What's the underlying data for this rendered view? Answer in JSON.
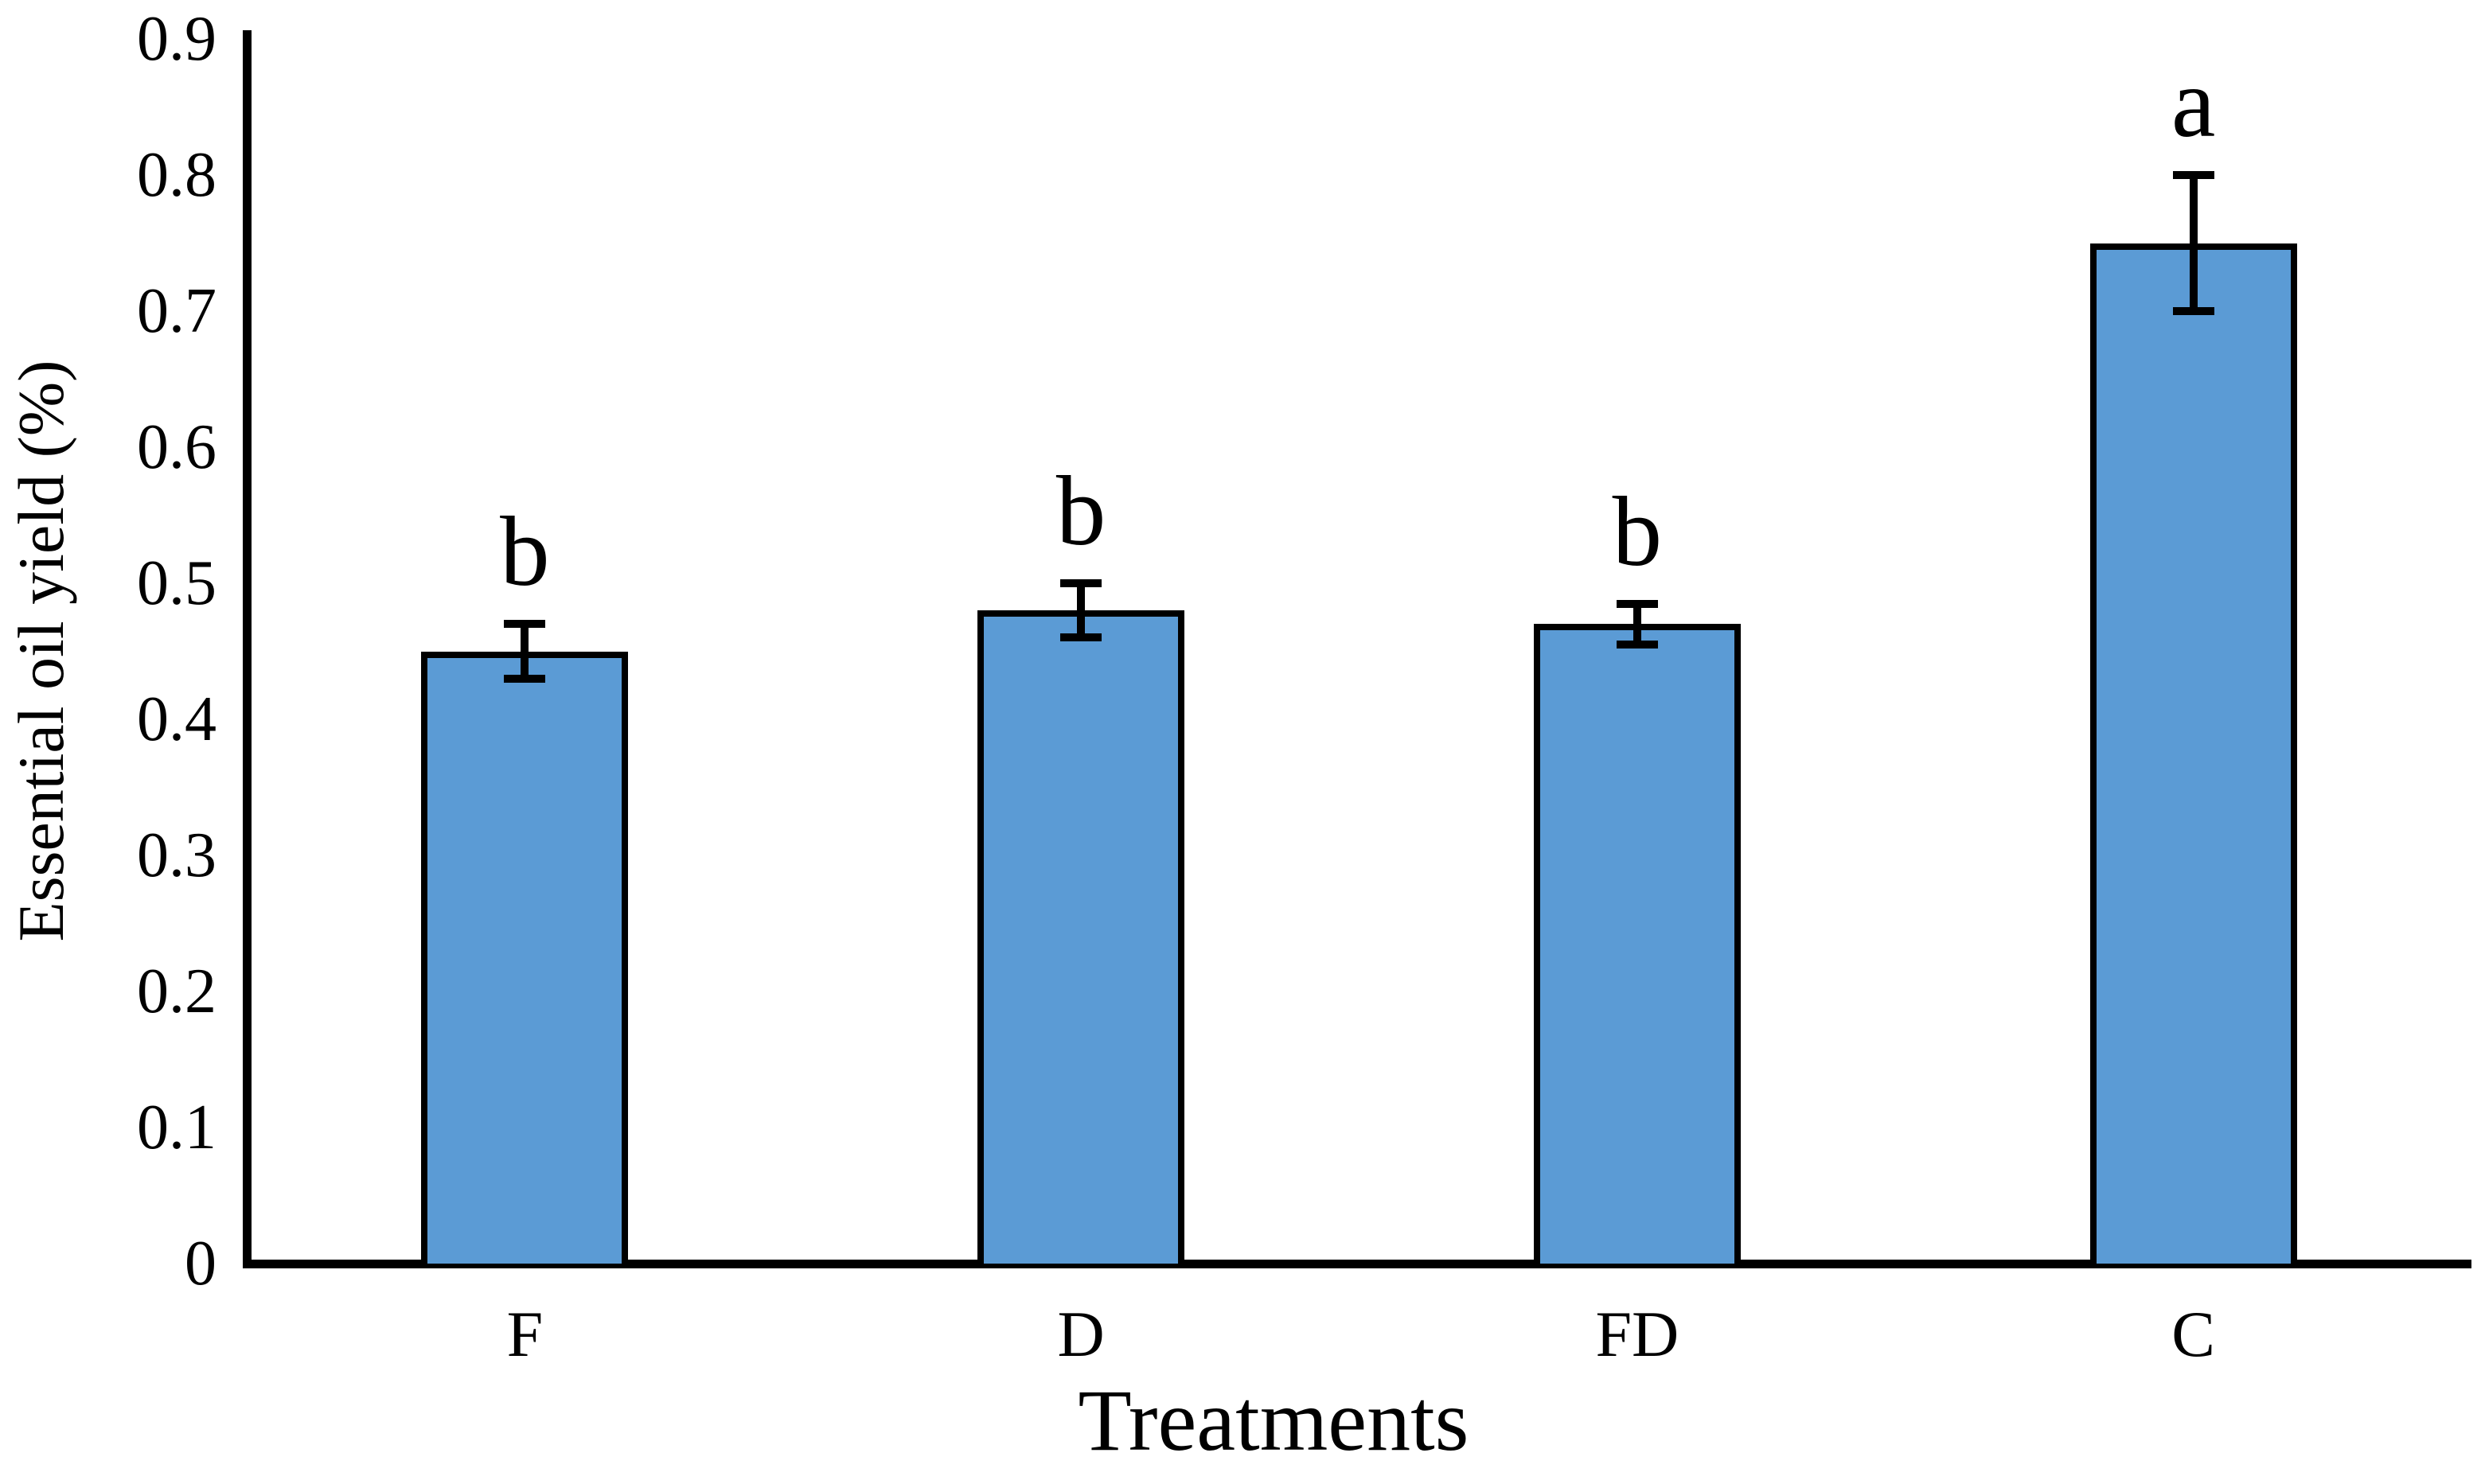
{
  "figure": {
    "background_color": "#ffffff",
    "text_color": "#000000"
  },
  "chart_data": {
    "type": "bar",
    "title": "",
    "categories": [
      "F",
      "D",
      "FD",
      "C"
    ],
    "values": [
      0.45,
      0.48,
      0.47,
      0.75
    ],
    "error_bars": [
      0.02,
      0.02,
      0.015,
      0.05
    ],
    "significance_letters": [
      "b",
      "b",
      "b",
      "a"
    ],
    "xlabel": "Treatments",
    "ylabel": "Essential oil yield (%)",
    "ylim": [
      0,
      0.9
    ],
    "ytick_values": [
      0,
      0.1,
      0.2,
      0.3,
      0.4,
      0.5,
      0.6,
      0.7,
      0.8,
      0.9
    ],
    "ytick_labels": [
      "0",
      "0.1",
      "0.2",
      "0.3",
      "0.4",
      "0.5",
      "0.6",
      "0.7",
      "0.8",
      "0.9"
    ],
    "grid": false,
    "legend": false,
    "bar_fill_color": "#5B9BD5",
    "bar_border_color": "#000000",
    "error_bar_color": "#000000",
    "axis_color": "#000000"
  }
}
